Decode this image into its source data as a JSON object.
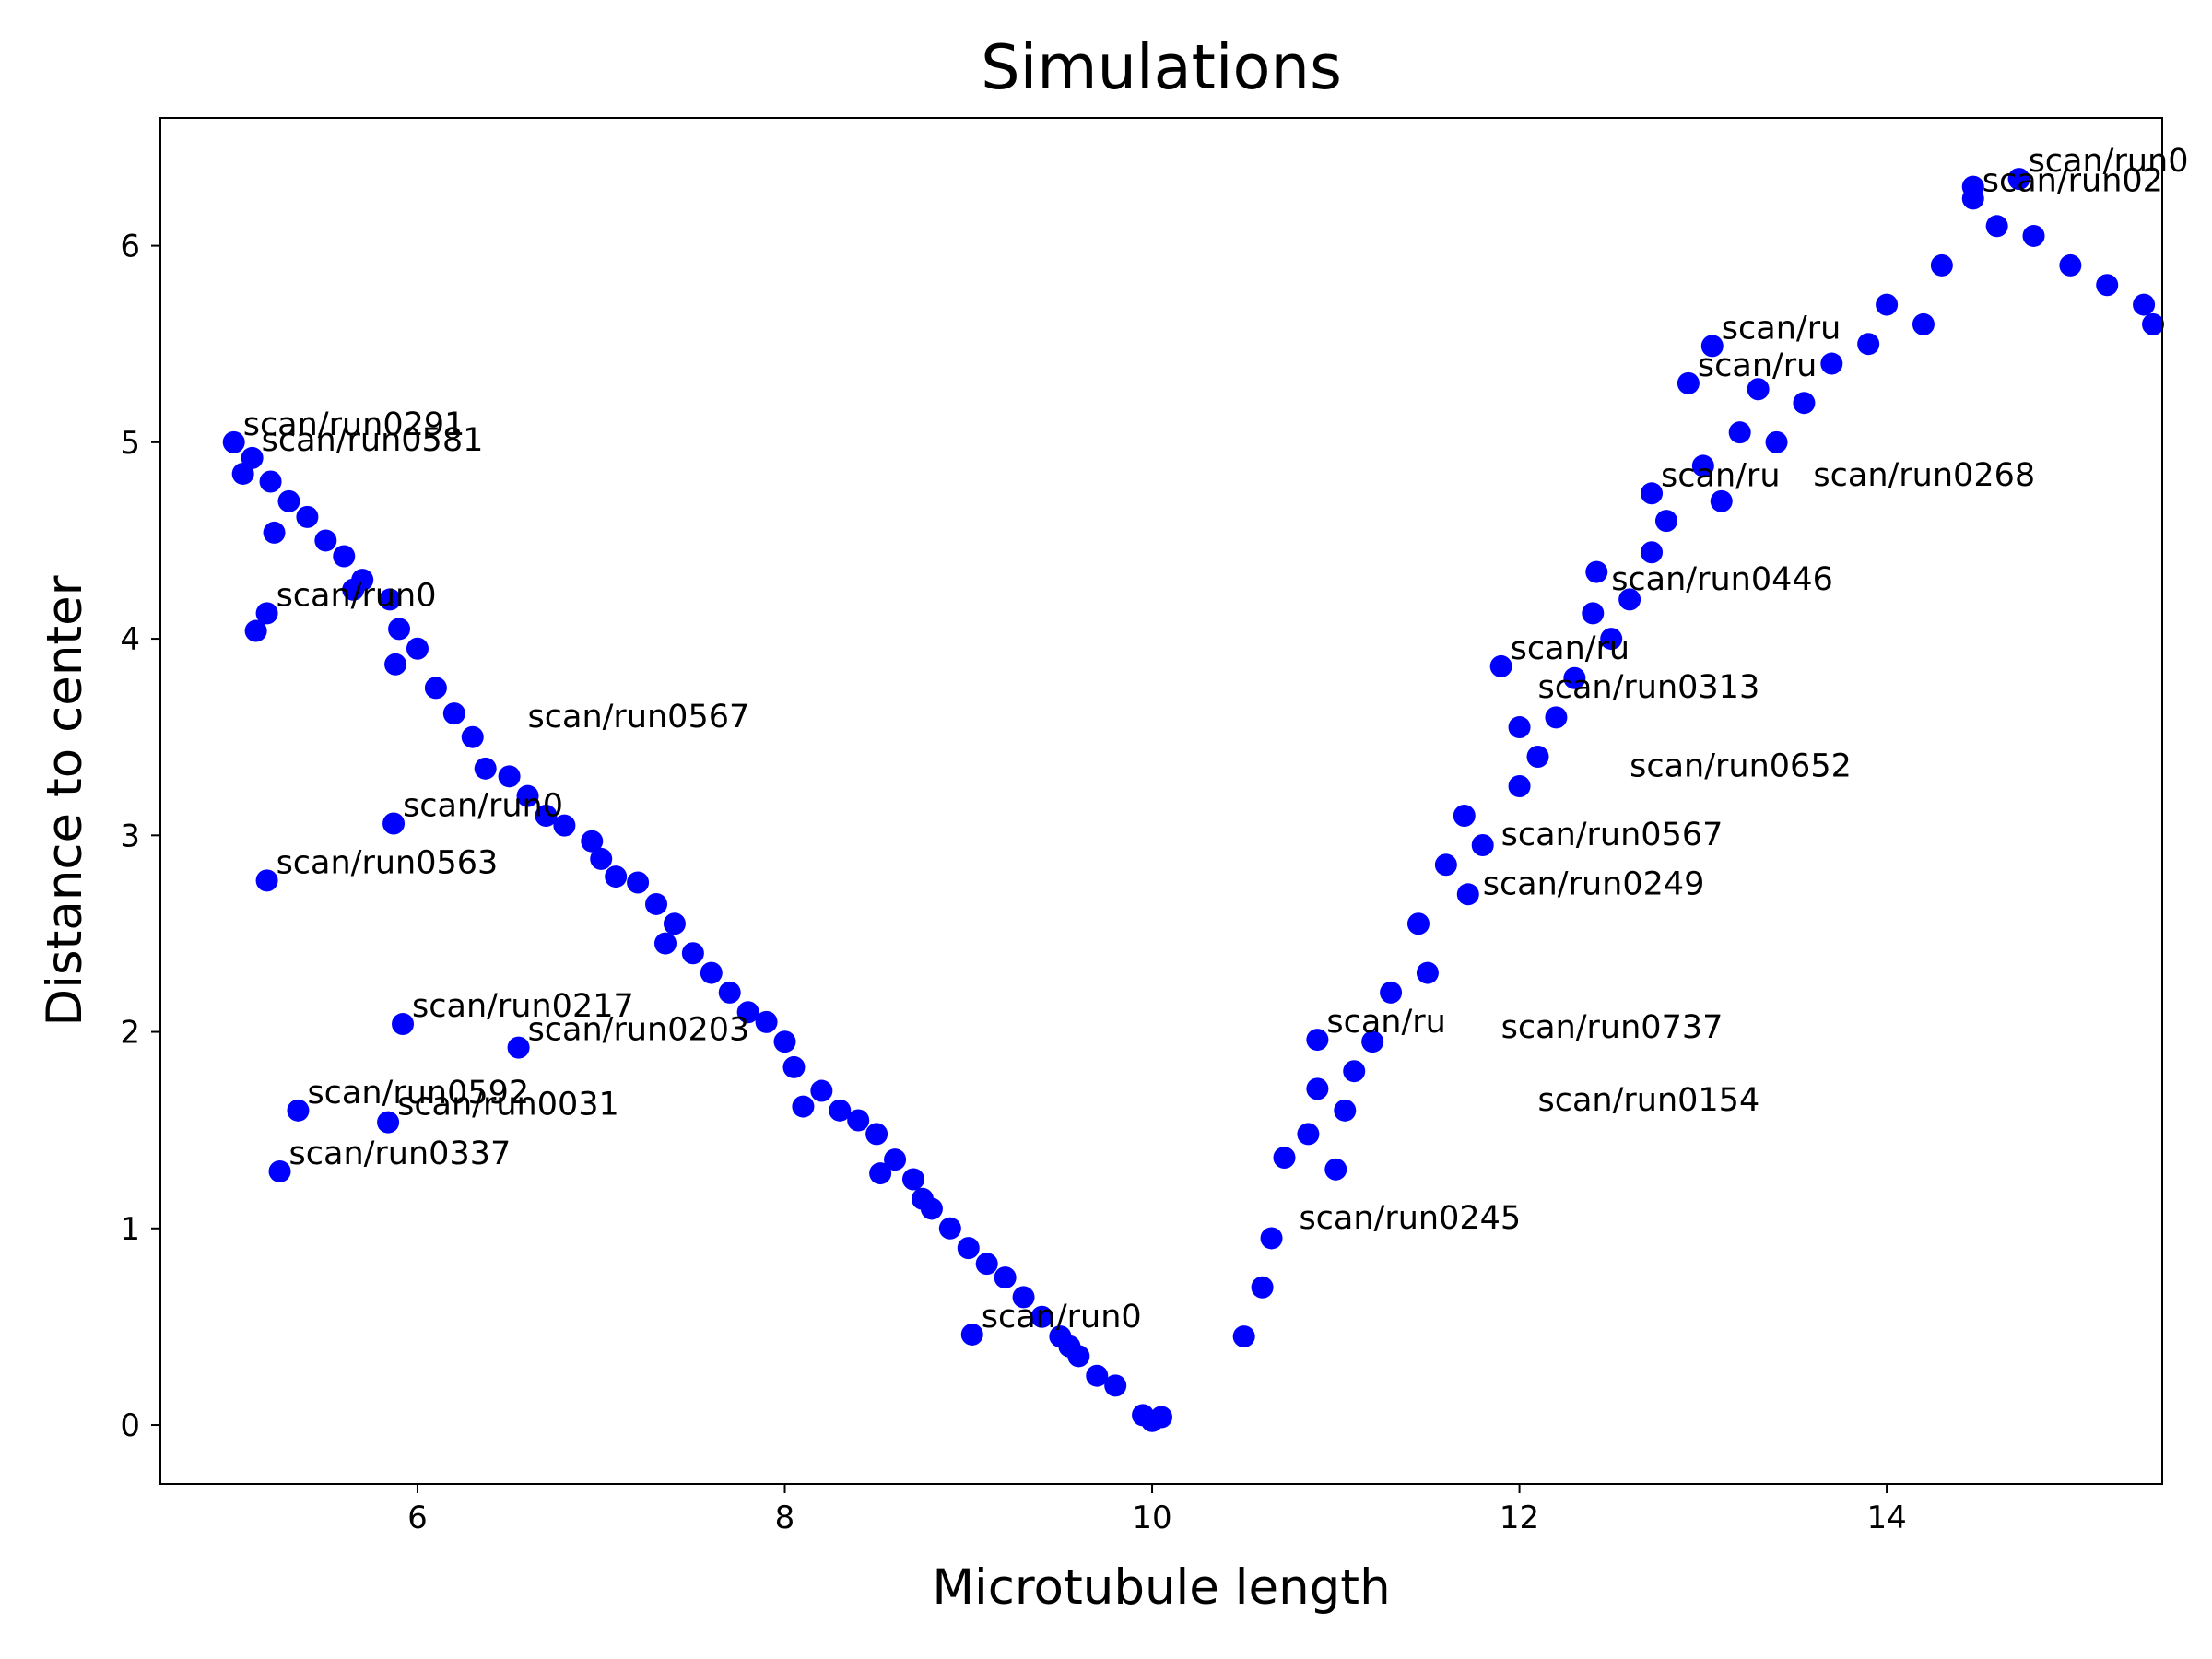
{
  "chart_data": {
    "type": "scatter",
    "title": "Simulations",
    "xlabel": "Microtubule length",
    "ylabel": "Distance to center",
    "xlim": [
      4.6,
      15.5
    ],
    "ylim": [
      -0.3,
      6.65
    ],
    "xticks": [
      6,
      8,
      10,
      12,
      14
    ],
    "yticks": [
      0,
      1,
      2,
      3,
      4,
      5,
      6
    ],
    "grid": false,
    "legend": "none",
    "marker_color": "#0000ff",
    "text_color": "#000000",
    "points": [
      {
        "x": 5.0,
        "y": 5.0,
        "label": "scan/run0291"
      },
      {
        "x": 5.05,
        "y": 4.84,
        "label": ""
      },
      {
        "x": 5.1,
        "y": 4.92,
        "label": "scan/run0581"
      },
      {
        "x": 5.2,
        "y": 4.8,
        "label": ""
      },
      {
        "x": 5.3,
        "y": 4.7,
        "label": ""
      },
      {
        "x": 5.22,
        "y": 4.54,
        "label": ""
      },
      {
        "x": 5.4,
        "y": 4.62,
        "label": ""
      },
      {
        "x": 5.5,
        "y": 4.5,
        "label": ""
      },
      {
        "x": 5.6,
        "y": 4.42,
        "label": ""
      },
      {
        "x": 5.7,
        "y": 4.3,
        "label": ""
      },
      {
        "x": 5.65,
        "y": 4.25,
        "label": ""
      },
      {
        "x": 5.85,
        "y": 4.2,
        "label": ""
      },
      {
        "x": 5.9,
        "y": 4.05,
        "label": ""
      },
      {
        "x": 5.88,
        "y": 3.87,
        "label": ""
      },
      {
        "x": 6.0,
        "y": 3.95,
        "label": ""
      },
      {
        "x": 6.1,
        "y": 3.75,
        "label": ""
      },
      {
        "x": 6.2,
        "y": 3.62,
        "label": ""
      },
      {
        "x": 6.3,
        "y": 3.5,
        "label": ""
      },
      {
        "x": 6.37,
        "y": 3.34,
        "label": ""
      },
      {
        "x": 6.5,
        "y": 3.3,
        "label": ""
      },
      {
        "x": 6.6,
        "y": 3.2,
        "label": ""
      },
      {
        "x": 6.7,
        "y": 3.1,
        "label": ""
      },
      {
        "x": 6.8,
        "y": 3.05,
        "label": ""
      },
      {
        "x": 6.95,
        "y": 2.97,
        "label": ""
      },
      {
        "x": 7.0,
        "y": 2.88,
        "label": ""
      },
      {
        "x": 7.08,
        "y": 2.79,
        "label": ""
      },
      {
        "x": 7.2,
        "y": 2.76,
        "label": ""
      },
      {
        "x": 7.3,
        "y": 2.65,
        "label": ""
      },
      {
        "x": 7.4,
        "y": 2.55,
        "label": ""
      },
      {
        "x": 7.35,
        "y": 2.45,
        "label": ""
      },
      {
        "x": 7.5,
        "y": 2.4,
        "label": ""
      },
      {
        "x": 7.6,
        "y": 2.3,
        "label": ""
      },
      {
        "x": 7.7,
        "y": 2.2,
        "label": ""
      },
      {
        "x": 7.8,
        "y": 2.1,
        "label": ""
      },
      {
        "x": 7.9,
        "y": 2.05,
        "label": ""
      },
      {
        "x": 8.0,
        "y": 1.95,
        "label": ""
      },
      {
        "x": 8.05,
        "y": 1.82,
        "label": ""
      },
      {
        "x": 8.1,
        "y": 1.62,
        "label": ""
      },
      {
        "x": 8.2,
        "y": 1.7,
        "label": ""
      },
      {
        "x": 8.3,
        "y": 1.6,
        "label": ""
      },
      {
        "x": 8.4,
        "y": 1.55,
        "label": ""
      },
      {
        "x": 8.5,
        "y": 1.48,
        "label": ""
      },
      {
        "x": 8.52,
        "y": 1.28,
        "label": ""
      },
      {
        "x": 8.6,
        "y": 1.35,
        "label": ""
      },
      {
        "x": 8.7,
        "y": 1.25,
        "label": ""
      },
      {
        "x": 8.75,
        "y": 1.15,
        "label": ""
      },
      {
        "x": 8.8,
        "y": 1.1,
        "label": ""
      },
      {
        "x": 8.9,
        "y": 1.0,
        "label": ""
      },
      {
        "x": 9.0,
        "y": 0.9,
        "label": ""
      },
      {
        "x": 9.02,
        "y": 0.46,
        "label": "scan/run0"
      },
      {
        "x": 9.1,
        "y": 0.82,
        "label": ""
      },
      {
        "x": 9.2,
        "y": 0.75,
        "label": ""
      },
      {
        "x": 9.3,
        "y": 0.65,
        "label": ""
      },
      {
        "x": 9.4,
        "y": 0.55,
        "label": ""
      },
      {
        "x": 9.5,
        "y": 0.45,
        "label": ""
      },
      {
        "x": 9.55,
        "y": 0.4,
        "label": ""
      },
      {
        "x": 9.6,
        "y": 0.35,
        "label": ""
      },
      {
        "x": 9.7,
        "y": 0.25,
        "label": ""
      },
      {
        "x": 9.8,
        "y": 0.2,
        "label": ""
      },
      {
        "x": 9.95,
        "y": 0.05,
        "label": ""
      },
      {
        "x": 10.0,
        "y": 0.02,
        "label": ""
      },
      {
        "x": 10.05,
        "y": 0.04,
        "label": ""
      },
      {
        "x": 5.12,
        "y": 4.04,
        "label": ""
      },
      {
        "x": 5.18,
        "y": 4.13,
        "label": "scan/run0"
      },
      {
        "x": 5.87,
        "y": 3.06,
        "label": "scan/run0"
      },
      {
        "x": 5.18,
        "y": 2.77,
        "label": "scan/run0563"
      },
      {
        "x": 5.92,
        "y": 2.04,
        "label": "scan/run0217"
      },
      {
        "x": 6.55,
        "y": 1.92,
        "label": "scan/run0203"
      },
      {
        "x": 5.35,
        "y": 1.6,
        "label": "scan/run0592"
      },
      {
        "x": 5.84,
        "y": 1.54,
        "label": "scan/run0031"
      },
      {
        "x": 5.25,
        "y": 1.29,
        "label": "scan/run0337"
      },
      {
        "x": 10.5,
        "y": 0.45,
        "label": ""
      },
      {
        "x": 10.6,
        "y": 0.7,
        "label": ""
      },
      {
        "x": 10.65,
        "y": 0.95,
        "label": ""
      },
      {
        "x": 10.72,
        "y": 1.36,
        "label": ""
      },
      {
        "x": 10.85,
        "y": 1.48,
        "label": ""
      },
      {
        "x": 10.9,
        "y": 1.96,
        "label": "scan/ru"
      },
      {
        "x": 10.9,
        "y": 1.71,
        "label": ""
      },
      {
        "x": 11.0,
        "y": 1.3,
        "label": ""
      },
      {
        "x": 11.05,
        "y": 1.6,
        "label": ""
      },
      {
        "x": 11.1,
        "y": 1.8,
        "label": ""
      },
      {
        "x": 11.2,
        "y": 1.95,
        "label": ""
      },
      {
        "x": 11.3,
        "y": 2.2,
        "label": ""
      },
      {
        "x": 11.45,
        "y": 2.55,
        "label": ""
      },
      {
        "x": 11.5,
        "y": 2.3,
        "label": ""
      },
      {
        "x": 11.6,
        "y": 2.85,
        "label": ""
      },
      {
        "x": 11.7,
        "y": 3.1,
        "label": ""
      },
      {
        "x": 11.72,
        "y": 2.7,
        "label": ""
      },
      {
        "x": 11.8,
        "y": 2.95,
        "label": ""
      },
      {
        "x": 11.9,
        "y": 3.86,
        "label": "scan/ru"
      },
      {
        "x": 12.0,
        "y": 3.55,
        "label": ""
      },
      {
        "x": 12.0,
        "y": 3.25,
        "label": ""
      },
      {
        "x": 12.1,
        "y": 3.4,
        "label": ""
      },
      {
        "x": 12.2,
        "y": 3.6,
        "label": ""
      },
      {
        "x": 12.3,
        "y": 3.8,
        "label": ""
      },
      {
        "x": 12.4,
        "y": 4.13,
        "label": ""
      },
      {
        "x": 12.42,
        "y": 4.34,
        "label": ""
      },
      {
        "x": 12.5,
        "y": 4.0,
        "label": ""
      },
      {
        "x": 12.6,
        "y": 4.2,
        "label": ""
      },
      {
        "x": 12.72,
        "y": 4.74,
        "label": "scan/ru"
      },
      {
        "x": 12.72,
        "y": 4.44,
        "label": ""
      },
      {
        "x": 12.8,
        "y": 4.6,
        "label": ""
      },
      {
        "x": 12.92,
        "y": 5.3,
        "label": "scan/ru"
      },
      {
        "x": 13.0,
        "y": 4.88,
        "label": ""
      },
      {
        "x": 13.05,
        "y": 5.49,
        "label": "scan/ru"
      },
      {
        "x": 13.1,
        "y": 4.7,
        "label": ""
      },
      {
        "x": 13.2,
        "y": 5.05,
        "label": ""
      },
      {
        "x": 13.3,
        "y": 5.27,
        "label": ""
      },
      {
        "x": 13.4,
        "y": 5.0,
        "label": ""
      },
      {
        "x": 13.55,
        "y": 5.2,
        "label": ""
      },
      {
        "x": 13.7,
        "y": 5.4,
        "label": ""
      },
      {
        "x": 13.9,
        "y": 5.5,
        "label": ""
      },
      {
        "x": 14.0,
        "y": 5.7,
        "label": ""
      },
      {
        "x": 14.2,
        "y": 5.6,
        "label": ""
      },
      {
        "x": 14.3,
        "y": 5.9,
        "label": ""
      },
      {
        "x": 14.47,
        "y": 6.24,
        "label": "scan/run02"
      },
      {
        "x": 14.47,
        "y": 6.3,
        "label": ""
      },
      {
        "x": 14.6,
        "y": 6.1,
        "label": ""
      },
      {
        "x": 14.72,
        "y": 6.34,
        "label": "scan/run0"
      },
      {
        "x": 14.8,
        "y": 6.05,
        "label": ""
      },
      {
        "x": 15.0,
        "y": 5.9,
        "label": ""
      },
      {
        "x": 15.2,
        "y": 5.8,
        "label": ""
      },
      {
        "x": 15.4,
        "y": 5.7,
        "label": ""
      },
      {
        "x": 15.45,
        "y": 5.6,
        "label": ""
      }
    ],
    "annotations": [
      {
        "x": 6.6,
        "y": 3.55,
        "text": "scan/run0567"
      },
      {
        "x": 11.9,
        "y": 2.95,
        "text": "scan/run0567"
      },
      {
        "x": 12.5,
        "y": 4.25,
        "text": "scan/run0446"
      },
      {
        "x": 12.1,
        "y": 3.7,
        "text": "scan/run0313"
      },
      {
        "x": 11.8,
        "y": 2.7,
        "text": "scan/run0249"
      },
      {
        "x": 11.9,
        "y": 1.97,
        "text": "scan/run0737"
      },
      {
        "x": 12.1,
        "y": 1.6,
        "text": "scan/run0154"
      },
      {
        "x": 10.8,
        "y": 1.0,
        "text": "scan/run0245"
      },
      {
        "x": 12.6,
        "y": 3.3,
        "text": "scan/run0652"
      },
      {
        "x": 13.6,
        "y": 4.78,
        "text": "scan/run0268"
      }
    ]
  }
}
